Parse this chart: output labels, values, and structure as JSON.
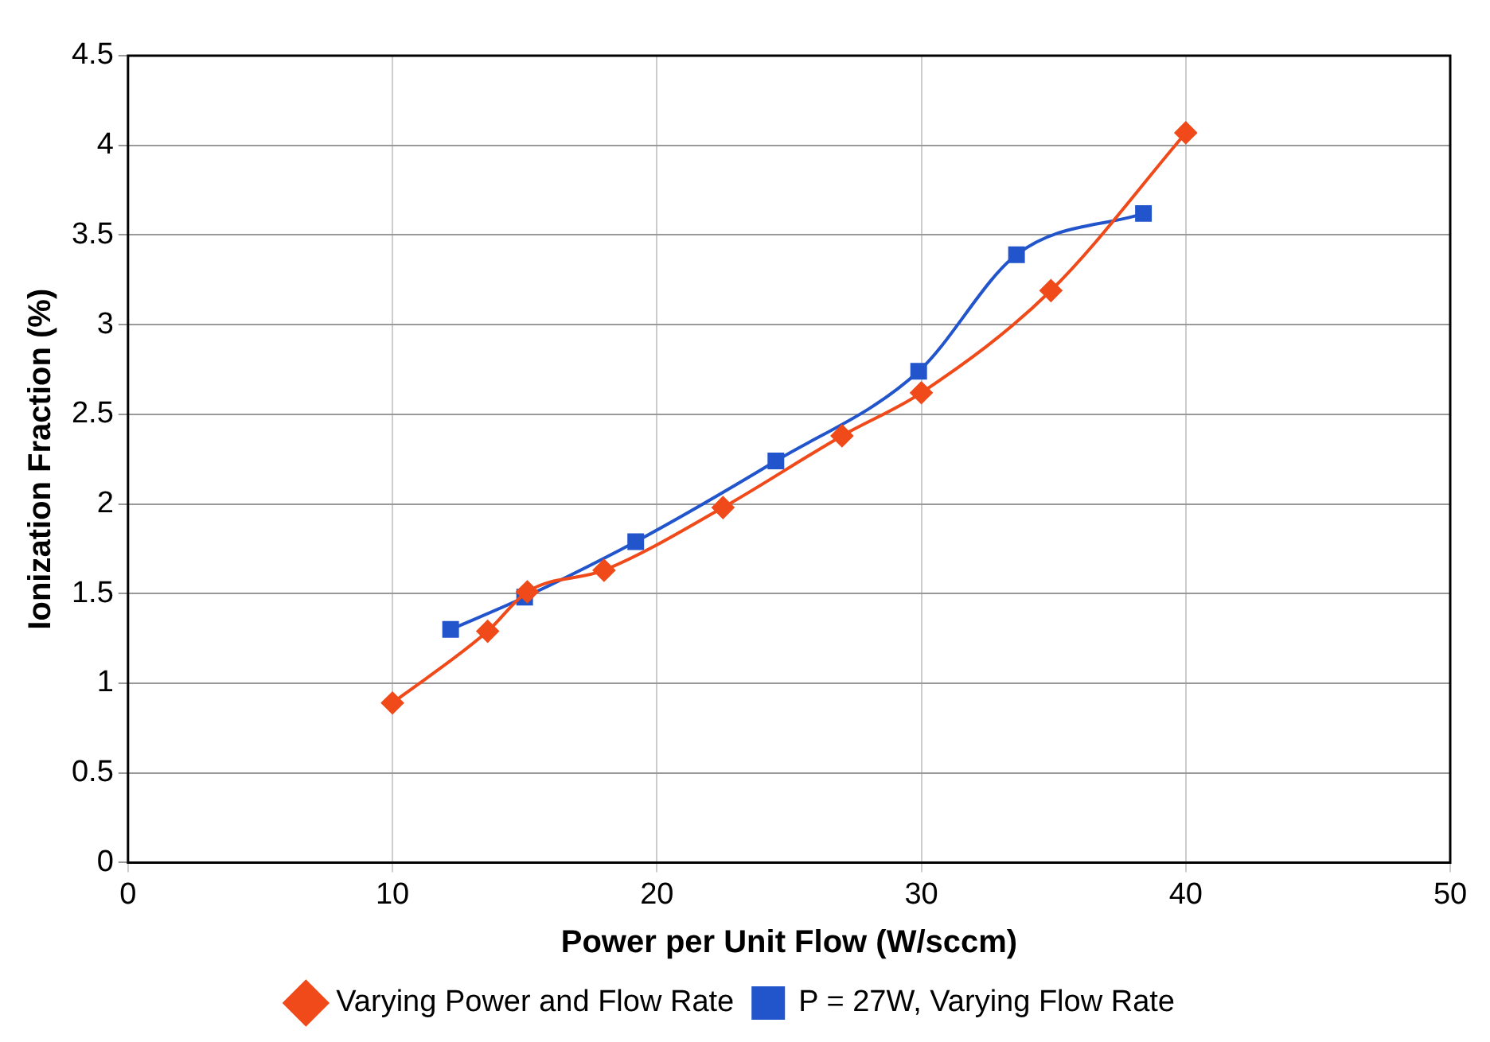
{
  "chart_data": {
    "type": "line",
    "xlabel": "Power per Unit Flow (W/sccm)",
    "ylabel": "Ionization Fraction (%)",
    "xlim": [
      0,
      50
    ],
    "xticks": [
      0,
      10,
      20,
      30,
      40,
      50
    ],
    "ylim": [
      0,
      4.5
    ],
    "yticks": [
      0,
      0.5,
      1,
      1.5,
      2,
      2.5,
      3,
      3.5,
      4,
      4.5
    ],
    "grid": true,
    "legend": "bottom",
    "series": [
      {
        "name": "P = 27W, Varying Flow Rate",
        "color": "#2255cc",
        "marker": "square",
        "x": [
          12.2,
          15.0,
          19.2,
          24.5,
          29.9,
          33.6,
          38.4
        ],
        "values": [
          1.3,
          1.48,
          1.79,
          2.24,
          2.74,
          3.39,
          3.62
        ]
      },
      {
        "name": "Varying Power and Flow Rate",
        "color": "#f04a1a",
        "marker": "diamond",
        "x": [
          10,
          13.6,
          15.1,
          18.0,
          22.5,
          27.0,
          30.0,
          34.9,
          40.0
        ],
        "values": [
          0.89,
          1.29,
          1.51,
          1.63,
          1.98,
          2.38,
          2.62,
          3.19,
          4.07
        ]
      }
    ]
  }
}
